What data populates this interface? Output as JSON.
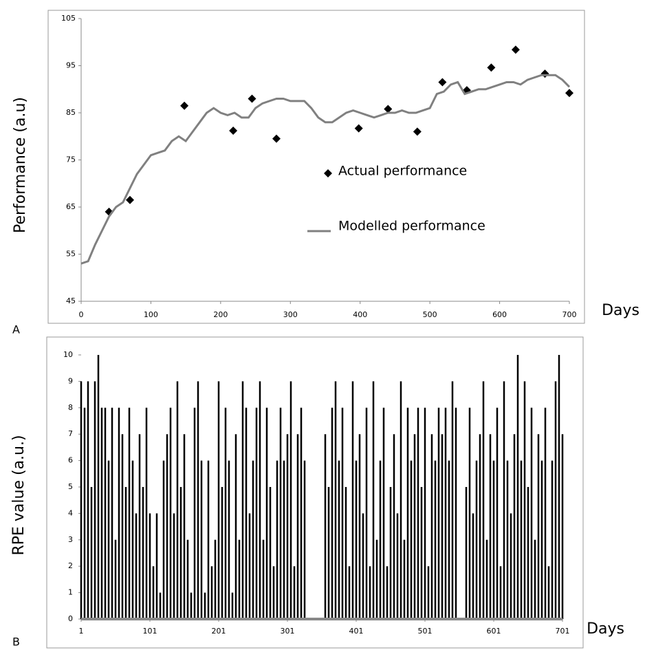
{
  "chart_data": [
    {
      "type": "scatter-line",
      "panel_label": "A",
      "ylabel": "Performance (a.u)",
      "xlabel": "Days",
      "xlim": [
        0,
        700
      ],
      "xticks": [
        0,
        100,
        200,
        300,
        400,
        500,
        600,
        700
      ],
      "ylim": [
        45,
        105
      ],
      "yticks": [
        45,
        55,
        65,
        75,
        85,
        95,
        105
      ],
      "series": [
        {
          "name": "Actual performance",
          "color": "#000000",
          "marker": "diamond",
          "x": [
            40,
            70,
            148,
            218,
            245,
            280,
            398,
            440,
            482,
            518,
            553,
            588,
            623,
            665,
            700
          ],
          "values": [
            64,
            66.5,
            86.5,
            81.2,
            88,
            79.5,
            81.7,
            85.8,
            81,
            91.5,
            89.8,
            94.6,
            98.4,
            93.3,
            89.2
          ]
        },
        {
          "name": "Modelled performance",
          "color": "#808080",
          "marker": "line",
          "x": [
            0,
            10,
            20,
            30,
            40,
            50,
            60,
            70,
            80,
            90,
            100,
            110,
            120,
            130,
            140,
            150,
            160,
            170,
            180,
            190,
            200,
            210,
            220,
            230,
            240,
            250,
            260,
            270,
            280,
            290,
            300,
            310,
            320,
            330,
            340,
            350,
            360,
            370,
            380,
            390,
            400,
            410,
            420,
            430,
            440,
            450,
            460,
            470,
            480,
            490,
            500,
            510,
            520,
            530,
            540,
            550,
            560,
            570,
            580,
            590,
            600,
            610,
            620,
            630,
            640,
            650,
            660,
            670,
            680,
            690,
            700
          ],
          "values": [
            53,
            53.5,
            57,
            60,
            63,
            65,
            66,
            69,
            72,
            74,
            76,
            76.5,
            77,
            79,
            80,
            79,
            81,
            83,
            85,
            86,
            85,
            84.5,
            85,
            84,
            84,
            86,
            87,
            87.5,
            88,
            88,
            87.5,
            87.5,
            87.5,
            86,
            84,
            83,
            83,
            84,
            85,
            85.5,
            85,
            84.5,
            84,
            84.5,
            85,
            85,
            85.5,
            85,
            85,
            85.5,
            86,
            89,
            89.5,
            91,
            91.5,
            89,
            89.5,
            90,
            90,
            90.5,
            91,
            91.5,
            91.5,
            91,
            92,
            92.5,
            93,
            93,
            93,
            92,
            90.5
          ]
        }
      ]
    },
    {
      "type": "bar",
      "panel_label": "B",
      "ylabel": "RPE value (a.u.)",
      "xlabel": "Days",
      "xlim": [
        1,
        701
      ],
      "xticks": [
        1,
        101,
        201,
        301,
        401,
        501,
        601,
        701
      ],
      "ylim": [
        0,
        10
      ],
      "yticks": [
        0,
        1,
        2,
        3,
        4,
        5,
        6,
        7,
        8,
        9,
        10
      ],
      "color": "#000000",
      "x": [
        1,
        6,
        11,
        16,
        21,
        26,
        31,
        36,
        41,
        46,
        51,
        56,
        61,
        66,
        71,
        76,
        81,
        86,
        91,
        96,
        101,
        106,
        111,
        116,
        121,
        126,
        131,
        136,
        141,
        146,
        151,
        156,
        161,
        166,
        171,
        176,
        181,
        186,
        191,
        196,
        201,
        206,
        211,
        216,
        221,
        226,
        231,
        236,
        241,
        246,
        251,
        256,
        261,
        266,
        271,
        276,
        281,
        286,
        291,
        296,
        301,
        306,
        311,
        316,
        321,
        326,
        331,
        336,
        341,
        346,
        351,
        356,
        361,
        366,
        371,
        376,
        381,
        386,
        391,
        396,
        401,
        406,
        411,
        416,
        421,
        426,
        431,
        436,
        441,
        446,
        451,
        456,
        461,
        466,
        471,
        476,
        481,
        486,
        491,
        496,
        501,
        506,
        511,
        516,
        521,
        526,
        531,
        536,
        541,
        546,
        551,
        556,
        561,
        566,
        571,
        576,
        581,
        586,
        591,
        596,
        601,
        606,
        611,
        616,
        621,
        626,
        631,
        636,
        641,
        646,
        651,
        656,
        661,
        666,
        671,
        676,
        681,
        686,
        691,
        696,
        701
      ],
      "values": [
        9,
        8,
        9,
        5,
        9,
        10,
        8,
        8,
        6,
        8,
        3,
        8,
        7,
        5,
        8,
        6,
        4,
        7,
        5,
        8,
        4,
        2,
        4,
        1,
        6,
        7,
        8,
        4,
        9,
        5,
        7,
        3,
        1,
        8,
        9,
        6,
        1,
        6,
        2,
        3,
        9,
        5,
        8,
        6,
        1,
        7,
        3,
        9,
        8,
        4,
        6,
        8,
        9,
        3,
        8,
        5,
        2,
        6,
        8,
        6,
        7,
        9,
        2,
        7,
        8,
        6,
        0,
        0,
        0,
        0,
        0,
        7,
        5,
        8,
        9,
        6,
        8,
        5,
        2,
        9,
        6,
        7,
        4,
        8,
        2,
        9,
        3,
        6,
        8,
        2,
        5,
        7,
        4,
        9,
        3,
        8,
        6,
        7,
        8,
        5,
        8,
        2,
        7,
        6,
        8,
        7,
        8,
        6,
        9,
        8,
        0,
        0,
        5,
        8,
        4,
        6,
        7,
        9,
        3,
        7,
        6,
        8,
        2,
        9,
        6,
        4,
        7,
        10,
        6,
        9,
        5,
        8,
        3,
        7,
        6,
        8,
        2,
        6,
        9,
        10,
        7
      ]
    }
  ]
}
